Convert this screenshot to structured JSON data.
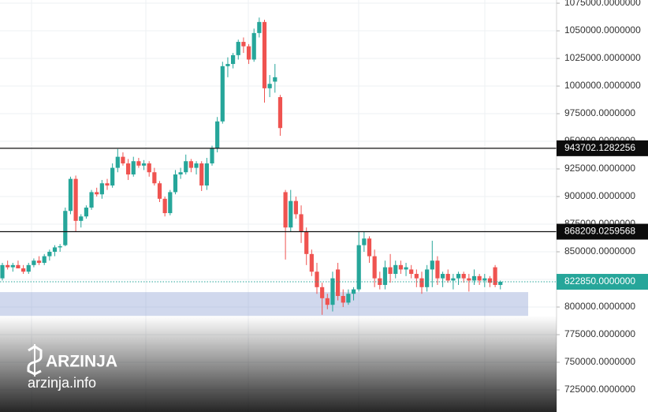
{
  "brand": {
    "name": "ARZINJA",
    "site": "arzinja.info"
  },
  "chart_data": {
    "type": "candlestick",
    "up_color": "#26a69a",
    "down_color": "#ef5350",
    "ylim": [
      705000,
      1077900
    ],
    "yticks": [
      {
        "value": 1075000,
        "label": "1075000.0000000"
      },
      {
        "value": 1050000,
        "label": "1050000.0000000"
      },
      {
        "value": 1025000,
        "label": "1025000.0000000"
      },
      {
        "value": 1000000,
        "label": "1000000.0000000"
      },
      {
        "value": 975000,
        "label": "975000.0000000"
      },
      {
        "value": 950000,
        "label": "950000.0000000"
      },
      {
        "value": 925000,
        "label": "925000.0000000"
      },
      {
        "value": 900000,
        "label": "900000.0000000"
      },
      {
        "value": 875000,
        "label": "875000.0000000"
      },
      {
        "value": 850000,
        "label": "850000.0000000"
      },
      {
        "value": 825000,
        "label": "825000.0000000"
      },
      {
        "value": 800000,
        "label": "800000.0000000"
      },
      {
        "value": 775000,
        "label": "775000.0000000"
      },
      {
        "value": 750000,
        "label": "750000.0000000"
      },
      {
        "value": 725000,
        "label": "725000.0000000"
      }
    ],
    "grid": true,
    "levels": [
      {
        "value": 943702.1282256,
        "label": "943702.1282256"
      },
      {
        "value": 868209.0259568,
        "label": "868209.0259568"
      }
    ],
    "last_price": {
      "value": 822850,
      "label": "822850.0000000",
      "color": "#26a69a"
    },
    "zone": {
      "range": [
        792000,
        813500
      ],
      "color": "rgba(110,135,200,0.32)"
    },
    "ohlc": [
      [
        826000,
        840000,
        824000,
        838000
      ],
      [
        838000,
        842000,
        834000,
        836000
      ],
      [
        836000,
        840000,
        832000,
        838000
      ],
      [
        838000,
        842000,
        835000,
        835000
      ],
      [
        835000,
        838000,
        830000,
        832000
      ],
      [
        832000,
        840000,
        830000,
        838000
      ],
      [
        838000,
        844000,
        836000,
        842000
      ],
      [
        842000,
        846000,
        838000,
        840000
      ],
      [
        840000,
        848000,
        838000,
        846000
      ],
      [
        846000,
        852000,
        842000,
        850000
      ],
      [
        850000,
        856000,
        846000,
        854000
      ],
      [
        854000,
        857000,
        850000,
        855000
      ],
      [
        856000,
        890000,
        855000,
        887000
      ],
      [
        887000,
        918000,
        884000,
        916000
      ],
      [
        916000,
        919000,
        868000,
        878000
      ],
      [
        878000,
        884000,
        872000,
        882000
      ],
      [
        882000,
        892000,
        880000,
        890000
      ],
      [
        890000,
        906000,
        888000,
        904000
      ],
      [
        904000,
        908000,
        900000,
        902000
      ],
      [
        902000,
        915000,
        898000,
        912000
      ],
      [
        912000,
        916000,
        906000,
        910000
      ],
      [
        910000,
        930000,
        908000,
        926000
      ],
      [
        926000,
        943000,
        922000,
        936000
      ],
      [
        936000,
        940000,
        928000,
        930000
      ],
      [
        930000,
        934000,
        915000,
        920000
      ],
      [
        920000,
        936000,
        918000,
        932000
      ],
      [
        932000,
        935000,
        926000,
        928000
      ],
      [
        928000,
        933000,
        924000,
        930000
      ],
      [
        930000,
        932000,
        918000,
        922000
      ],
      [
        922000,
        926000,
        910000,
        912000
      ],
      [
        912000,
        914000,
        895000,
        898000
      ],
      [
        898000,
        900000,
        882000,
        885000
      ],
      [
        885000,
        906000,
        883000,
        904000
      ],
      [
        904000,
        924000,
        902000,
        920000
      ],
      [
        920000,
        926000,
        916000,
        922000
      ],
      [
        922000,
        938000,
        920000,
        932000
      ],
      [
        932000,
        934000,
        922000,
        926000
      ],
      [
        926000,
        932000,
        920000,
        930000
      ],
      [
        930000,
        932000,
        905000,
        910000
      ],
      [
        910000,
        935000,
        906000,
        930000
      ],
      [
        930000,
        946000,
        928000,
        944000
      ],
      [
        944000,
        972000,
        940000,
        968000
      ],
      [
        968000,
        1022000,
        966000,
        1018000
      ],
      [
        1018000,
        1026000,
        1008000,
        1020000
      ],
      [
        1020000,
        1030000,
        1016000,
        1028000
      ],
      [
        1028000,
        1042000,
        1024000,
        1040000
      ],
      [
        1040000,
        1044000,
        1030000,
        1036000
      ],
      [
        1036000,
        1038000,
        1020000,
        1024000
      ],
      [
        1024000,
        1052000,
        1022000,
        1048000
      ],
      [
        1048000,
        1062000,
        1044000,
        1058000
      ],
      [
        1058000,
        1060000,
        985000,
        998000
      ],
      [
        998000,
        1010000,
        990000,
        1002000
      ],
      [
        1004000,
        1020000,
        994000,
        1008000
      ],
      [
        990000,
        992000,
        955000,
        962000
      ],
      [
        904000,
        906000,
        843000,
        872000
      ],
      [
        872000,
        906000,
        868000,
        896000
      ],
      [
        896000,
        900000,
        880000,
        884000
      ],
      [
        884000,
        892000,
        858000,
        868000
      ],
      [
        868000,
        872000,
        838000,
        848000
      ],
      [
        848000,
        852000,
        828000,
        832000
      ],
      [
        832000,
        840000,
        812000,
        818000
      ],
      [
        818000,
        822000,
        793000,
        808000
      ],
      [
        808000,
        812000,
        798000,
        802000
      ],
      [
        802000,
        832000,
        796000,
        826000
      ],
      [
        834000,
        840000,
        806000,
        810000
      ],
      [
        810000,
        816000,
        800000,
        804000
      ],
      [
        804000,
        816000,
        802000,
        812000
      ],
      [
        812000,
        818000,
        806000,
        816000
      ],
      [
        816000,
        868000,
        814000,
        856000
      ],
      [
        856000,
        868000,
        850000,
        862000
      ],
      [
        862000,
        864000,
        840000,
        846000
      ],
      [
        846000,
        852000,
        818000,
        826000
      ],
      [
        826000,
        832000,
        816000,
        820000
      ],
      [
        820000,
        842000,
        816000,
        836000
      ],
      [
        836000,
        848000,
        822000,
        830000
      ],
      [
        830000,
        842000,
        826000,
        838000
      ],
      [
        838000,
        842000,
        830000,
        834000
      ],
      [
        834000,
        840000,
        828000,
        836000
      ],
      [
        834000,
        838000,
        826000,
        830000
      ],
      [
        830000,
        834000,
        818000,
        826000
      ],
      [
        826000,
        832000,
        812000,
        818000
      ],
      [
        818000,
        838000,
        814000,
        834000
      ],
      [
        834000,
        860000,
        818000,
        842000
      ],
      [
        842000,
        846000,
        820000,
        826000
      ],
      [
        826000,
        832000,
        818000,
        830000
      ],
      [
        830000,
        834000,
        822000,
        824000
      ],
      [
        824000,
        830000,
        816000,
        826000
      ],
      [
        826000,
        832000,
        820000,
        830000
      ],
      [
        830000,
        832000,
        822000,
        826000
      ],
      [
        826000,
        830000,
        814000,
        824000
      ],
      [
        824000,
        834000,
        820000,
        828000
      ],
      [
        828000,
        830000,
        820000,
        824000
      ],
      [
        824000,
        830000,
        818000,
        826000
      ],
      [
        826000,
        828000,
        818000,
        822000
      ],
      [
        836000,
        838000,
        818000,
        820000
      ],
      [
        820000,
        824000,
        816000,
        822850
      ]
    ]
  }
}
